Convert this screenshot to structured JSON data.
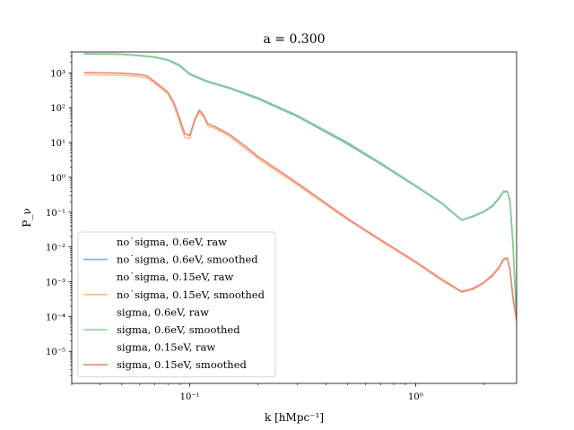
{
  "chart_data": {
    "type": "line",
    "title": "a = 0.300",
    "xlabel": "k [hMpc⁻¹]",
    "ylabel": "P_ν",
    "xscale": "log",
    "yscale": "log",
    "xlim": [
      0.03,
      2.8
    ],
    "ylim": [
      1.2e-06,
      4000
    ],
    "xticks": [
      {
        "v": 0.1,
        "label": "10⁻¹"
      },
      {
        "v": 1,
        "label": "10⁰"
      }
    ],
    "yticks": [
      {
        "v": 1e-05,
        "label": "10⁻⁵"
      },
      {
        "v": 0.0001,
        "label": "10⁻⁴"
      },
      {
        "v": 0.001,
        "label": "10⁻³"
      },
      {
        "v": 0.01,
        "label": "10⁻²"
      },
      {
        "v": 0.1,
        "label": "10⁻¹"
      },
      {
        "v": 1,
        "label": "10⁰"
      },
      {
        "v": 10,
        "label": "10¹"
      },
      {
        "v": 100,
        "label": "10²"
      },
      {
        "v": 1000,
        "label": "10³"
      }
    ],
    "legend_location": "lower-left",
    "series": [
      {
        "name": "no_sigma, 0.6eV, raw",
        "color": "#1f77b4",
        "drawn": false,
        "x": [
          0.034,
          0.06,
          0.08,
          0.1,
          0.2,
          0.5,
          1.0,
          1.6,
          2.0,
          2.45,
          2.6,
          2.8
        ],
        "y": [
          3500,
          3000,
          2000,
          1000,
          200,
          10,
          0.6,
          0.058,
          0.1,
          0.4,
          0.3,
          0.0001
        ]
      },
      {
        "name": "no_sigma, 0.6eV, smoothed",
        "color": "#7fb3d8",
        "drawn": true,
        "x": [
          0.034,
          0.05,
          0.06,
          0.07,
          0.08,
          0.09,
          0.1,
          0.12,
          0.15,
          0.2,
          0.3,
          0.5,
          0.7,
          1.0,
          1.3,
          1.6,
          1.8,
          2.0,
          2.2,
          2.35,
          2.45,
          2.55,
          2.62,
          2.7,
          2.8
        ],
        "y": [
          3500,
          3400,
          3100,
          2800,
          2300,
          1600,
          900,
          550,
          360,
          180,
          55,
          9,
          2.4,
          0.55,
          0.18,
          0.058,
          0.075,
          0.1,
          0.15,
          0.25,
          0.38,
          0.38,
          0.2,
          0.01,
          8e-05
        ]
      },
      {
        "name": "no_sigma, 0.15eV, raw",
        "color": "#ff7f0e",
        "drawn": false,
        "x": [
          0.034,
          0.06,
          0.08,
          0.1,
          0.2,
          0.5,
          1.0,
          1.6,
          2.0,
          2.45,
          2.6,
          2.8
        ],
        "y": [
          900,
          800,
          400,
          15,
          5,
          0.1,
          0.004,
          0.0005,
          0.001,
          0.004,
          0.003,
          0.0001
        ]
      },
      {
        "name": "no_sigma, 0.15eV, smoothed",
        "color": "#ffbf86",
        "drawn": true,
        "x": [
          0.034,
          0.05,
          0.06,
          0.065,
          0.07,
          0.08,
          0.085,
          0.09,
          0.095,
          0.1,
          0.105,
          0.11,
          0.115,
          0.12,
          0.13,
          0.15,
          0.18,
          0.2,
          0.3,
          0.5,
          0.7,
          1.0,
          1.3,
          1.6,
          1.8,
          2.0,
          2.2,
          2.35,
          2.45,
          2.55,
          2.62,
          2.7,
          2.8
        ],
        "y": [
          880,
          850,
          780,
          700,
          500,
          250,
          120,
          40,
          14,
          13,
          40,
          75,
          55,
          30,
          25,
          15,
          6,
          3.5,
          0.6,
          0.06,
          0.015,
          0.0035,
          0.0011,
          0.0005,
          0.0006,
          0.0009,
          0.0015,
          0.0025,
          0.0042,
          0.0045,
          0.002,
          0.0003,
          7e-05
        ]
      },
      {
        "name": "sigma, 0.6eV, raw",
        "color": "#2ca02c",
        "drawn": false,
        "x": [
          0.034,
          0.06,
          0.08,
          0.1,
          0.2,
          0.5,
          1.0,
          1.6,
          2.0,
          2.45,
          2.6,
          2.8
        ],
        "y": [
          3600,
          3100,
          2100,
          1000,
          210,
          11,
          0.6,
          0.06,
          0.1,
          0.4,
          0.3,
          0.0001
        ]
      },
      {
        "name": "sigma, 0.6eV, smoothed",
        "color": "#8bcf8b",
        "drawn": true,
        "x": [
          0.034,
          0.05,
          0.06,
          0.07,
          0.08,
          0.09,
          0.1,
          0.12,
          0.15,
          0.2,
          0.3,
          0.5,
          0.7,
          1.0,
          1.3,
          1.6,
          1.8,
          2.0,
          2.2,
          2.35,
          2.45,
          2.55,
          2.62,
          2.7,
          2.8
        ],
        "y": [
          3600,
          3500,
          3200,
          2900,
          2400,
          1700,
          950,
          580,
          380,
          195,
          60,
          10,
          2.6,
          0.58,
          0.19,
          0.06,
          0.078,
          0.105,
          0.16,
          0.27,
          0.4,
          0.4,
          0.22,
          0.012,
          9e-05
        ]
      },
      {
        "name": "sigma, 0.15eV, raw",
        "color": "#d62728",
        "drawn": false,
        "x": [
          0.034,
          0.06,
          0.08,
          0.1,
          0.2,
          0.5,
          1.0,
          1.6,
          2.0,
          2.45,
          2.6,
          2.8
        ],
        "y": [
          1000,
          900,
          450,
          17,
          5.5,
          0.11,
          0.0042,
          0.0005,
          0.001,
          0.0045,
          0.003,
          0.0001
        ]
      },
      {
        "name": "sigma, 0.15eV, smoothed",
        "color": "#ea8480",
        "drawn": true,
        "x": [
          0.034,
          0.05,
          0.06,
          0.065,
          0.07,
          0.08,
          0.085,
          0.09,
          0.095,
          0.1,
          0.105,
          0.11,
          0.115,
          0.12,
          0.13,
          0.15,
          0.18,
          0.2,
          0.3,
          0.5,
          0.7,
          1.0,
          1.3,
          1.6,
          1.8,
          2.0,
          2.2,
          2.35,
          2.45,
          2.55,
          2.62,
          2.7,
          2.8
        ],
        "y": [
          1020,
          980,
          900,
          800,
          560,
          280,
          140,
          50,
          18,
          16,
          45,
          85,
          62,
          35,
          28,
          17,
          7,
          4,
          0.68,
          0.065,
          0.016,
          0.0038,
          0.0012,
          0.00052,
          0.00065,
          0.00095,
          0.0016,
          0.0027,
          0.0045,
          0.0048,
          0.0022,
          0.00035,
          8e-05
        ]
      }
    ]
  }
}
